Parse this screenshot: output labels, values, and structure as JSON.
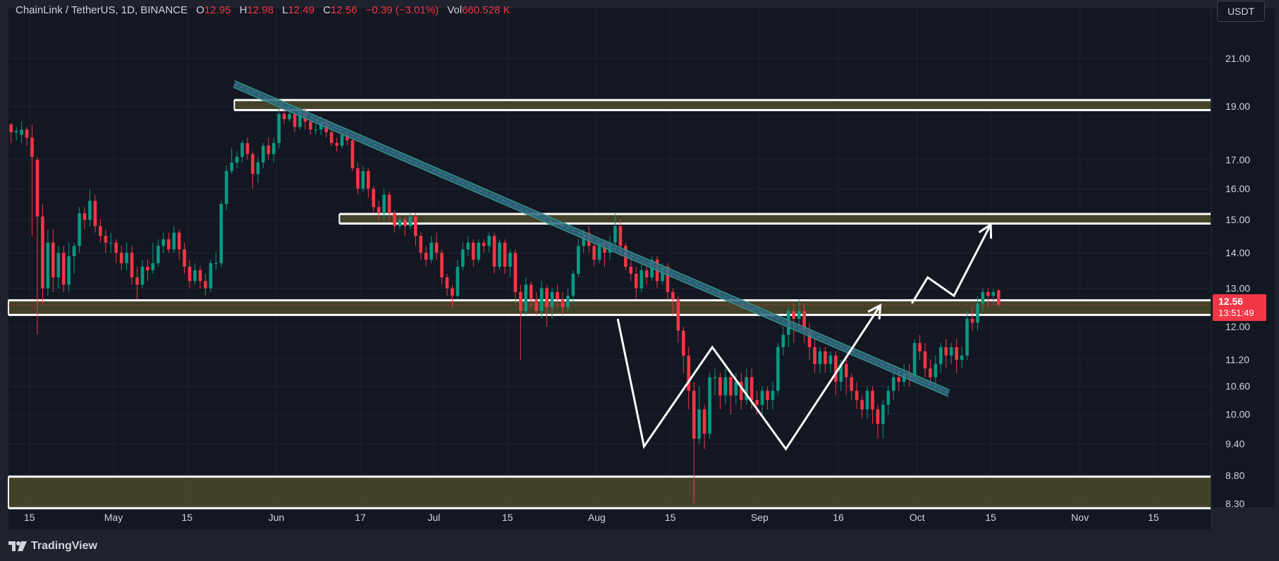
{
  "legend": {
    "symbol": "ChainLink / TetherUS, 1D, BINANCE",
    "open_k": "O",
    "open": "12.95",
    "high_k": "H",
    "high": "12.98",
    "low_k": "L",
    "low": "12.49",
    "close_k": "C",
    "close": "12.56",
    "change": "−0.39 (−3.01%)",
    "vol_k": "Vol",
    "vol": "660.528 K"
  },
  "currency": "USDT",
  "last_price": {
    "price": "12.56",
    "countdown": "13:51:49"
  },
  "branding": "TradingView",
  "colors": {
    "background": "#1e222d",
    "pane": "#131722",
    "up": "#089981",
    "down": "#f23645",
    "zone_fill": "#46452a",
    "zone_border": "#ffffff",
    "trendline": "#2a6e7a",
    "drawing": "#ffffff",
    "text": "#d1d4dc"
  },
  "chart_data": {
    "type": "candlestick",
    "y_scale": "log",
    "ylim": [
      8.22,
      23.3
    ],
    "price_ticks": [
      "21.00",
      "19.00",
      "17.00",
      "16.00",
      "15.00",
      "14.00",
      "13.00",
      "12.00",
      "11.20",
      "10.60",
      "10.00",
      "9.40",
      "8.80",
      "8.30"
    ],
    "x_range": [
      "2024-04-11",
      "2024-11-26"
    ],
    "x_ticks": [
      {
        "date": "2024-04-15",
        "label": "15"
      },
      {
        "date": "2024-05-01",
        "label": "May"
      },
      {
        "date": "2024-05-15",
        "label": "15"
      },
      {
        "date": "2024-06-01",
        "label": "Jun"
      },
      {
        "date": "2024-06-17",
        "label": "17"
      },
      {
        "date": "2024-07-01",
        "label": "Jul"
      },
      {
        "date": "2024-07-15",
        "label": "15"
      },
      {
        "date": "2024-08-01",
        "label": "Aug"
      },
      {
        "date": "2024-08-15",
        "label": "15"
      },
      {
        "date": "2024-09-01",
        "label": "Sep"
      },
      {
        "date": "2024-09-16",
        "label": "16"
      },
      {
        "date": "2024-10-01",
        "label": "Oct"
      },
      {
        "date": "2024-10-15",
        "label": "15"
      },
      {
        "date": "2024-11-01",
        "label": "Nov"
      },
      {
        "date": "2024-11-15",
        "label": "15"
      }
    ],
    "first_candle": "2024-04-11",
    "candles": [
      [
        18.3,
        18.0,
        18.35,
        17.6
      ],
      [
        18.0,
        18.05,
        18.2,
        17.7
      ],
      [
        17.9,
        18.1,
        18.4,
        17.6
      ],
      [
        18.1,
        17.8,
        18.2,
        17.5
      ],
      [
        17.8,
        17.1,
        18.3,
        14.5
      ],
      [
        17.0,
        15.1,
        17.1,
        11.8
      ],
      [
        15.1,
        13.0,
        15.5,
        12.6
      ],
      [
        13.0,
        14.3,
        14.7,
        12.8
      ],
      [
        14.3,
        13.3,
        14.7,
        12.9
      ],
      [
        13.3,
        14.0,
        14.2,
        13.0
      ],
      [
        14.0,
        13.1,
        14.2,
        12.9
      ],
      [
        13.1,
        13.9,
        14.3,
        12.9
      ],
      [
        13.9,
        14.2,
        14.3,
        13.4
      ],
      [
        14.2,
        15.2,
        15.4,
        14.0
      ],
      [
        15.2,
        15.0,
        15.4,
        14.7
      ],
      [
        15.0,
        15.6,
        16.0,
        14.8
      ],
      [
        15.6,
        14.8,
        15.8,
        14.6
      ],
      [
        14.8,
        14.5,
        15.0,
        14.3
      ],
      [
        14.5,
        14.3,
        14.7,
        14.0
      ],
      [
        14.3,
        14.3,
        14.6,
        14.0
      ],
      [
        14.3,
        14.0,
        14.4,
        13.7
      ],
      [
        14.0,
        13.7,
        14.2,
        13.5
      ],
      [
        13.7,
        14.0,
        14.3,
        13.5
      ],
      [
        14.0,
        13.3,
        14.2,
        13.1
      ],
      [
        13.3,
        13.1,
        13.6,
        12.7
      ],
      [
        13.1,
        13.6,
        13.8,
        13.0
      ],
      [
        13.6,
        13.5,
        13.8,
        13.2
      ],
      [
        13.5,
        13.7,
        14.3,
        13.4
      ],
      [
        13.7,
        14.2,
        14.4,
        13.6
      ],
      [
        14.2,
        14.4,
        14.6,
        14.0
      ],
      [
        14.4,
        14.1,
        14.6,
        14.0
      ],
      [
        14.1,
        14.6,
        14.8,
        14.0
      ],
      [
        14.6,
        14.1,
        14.7,
        13.8
      ],
      [
        14.1,
        13.6,
        14.3,
        13.4
      ],
      [
        13.6,
        13.2,
        13.8,
        13.0
      ],
      [
        13.2,
        13.5,
        13.7,
        13.1
      ],
      [
        13.5,
        13.2,
        13.6,
        13.0
      ],
      [
        13.2,
        13.0,
        13.4,
        12.8
      ],
      [
        13.0,
        13.7,
        13.8,
        12.9
      ],
      [
        13.7,
        13.7,
        14.0,
        13.5
      ],
      [
        13.7,
        15.5,
        15.6,
        13.6
      ],
      [
        15.5,
        16.6,
        16.8,
        15.3
      ],
      [
        16.6,
        16.9,
        17.4,
        16.5
      ],
      [
        16.9,
        17.1,
        17.3,
        16.7
      ],
      [
        17.1,
        17.6,
        17.7,
        16.9
      ],
      [
        17.6,
        17.2,
        17.8,
        17.0
      ],
      [
        17.2,
        16.5,
        17.3,
        16.0
      ],
      [
        16.5,
        16.9,
        17.1,
        16.2
      ],
      [
        16.9,
        17.5,
        17.6,
        16.7
      ],
      [
        17.5,
        17.2,
        17.8,
        17.0
      ],
      [
        17.2,
        17.6,
        17.8,
        16.9
      ],
      [
        17.6,
        18.7,
        18.9,
        17.4
      ],
      [
        18.7,
        18.5,
        19.0,
        18.3
      ],
      [
        18.5,
        18.7,
        19.0,
        18.4
      ],
      [
        18.7,
        18.2,
        18.9,
        18.0
      ],
      [
        18.2,
        18.8,
        19.0,
        18.1
      ],
      [
        18.8,
        18.4,
        18.9,
        18.1
      ],
      [
        18.4,
        18.1,
        18.6,
        17.9
      ],
      [
        18.1,
        18.1,
        18.3,
        17.9
      ],
      [
        18.1,
        18.4,
        18.6,
        17.9
      ],
      [
        18.4,
        18.0,
        18.5,
        17.8
      ],
      [
        18.0,
        17.6,
        18.1,
        17.5
      ],
      [
        17.6,
        17.5,
        17.8,
        17.3
      ],
      [
        17.5,
        17.9,
        18.0,
        17.4
      ],
      [
        17.9,
        17.7,
        18.0,
        17.5
      ],
      [
        17.7,
        16.7,
        17.8,
        16.6
      ],
      [
        16.7,
        16.0,
        16.9,
        15.8
      ],
      [
        16.0,
        16.6,
        16.8,
        15.9
      ],
      [
        16.6,
        16.0,
        16.7,
        15.7
      ],
      [
        16.0,
        15.4,
        16.1,
        15.2
      ],
      [
        15.4,
        15.2,
        15.6,
        15.0
      ],
      [
        15.2,
        15.8,
        16.0,
        15.0
      ],
      [
        15.8,
        15.2,
        15.9,
        14.9
      ],
      [
        15.2,
        14.8,
        15.3,
        14.6
      ],
      [
        14.8,
        15.0,
        15.1,
        14.7
      ],
      [
        15.0,
        14.8,
        15.1,
        14.5
      ],
      [
        14.8,
        15.1,
        15.2,
        14.7
      ],
      [
        15.1,
        14.5,
        15.2,
        14.2
      ],
      [
        14.5,
        14.0,
        14.6,
        13.8
      ],
      [
        14.0,
        13.8,
        14.2,
        13.6
      ],
      [
        13.8,
        14.3,
        14.5,
        13.7
      ],
      [
        14.3,
        14.0,
        14.6,
        13.8
      ],
      [
        14.0,
        13.3,
        14.1,
        13.1
      ],
      [
        13.3,
        13.0,
        13.4,
        12.8
      ],
      [
        13.0,
        12.8,
        13.1,
        12.5
      ],
      [
        12.8,
        13.6,
        13.8,
        12.7
      ],
      [
        13.6,
        14.1,
        14.3,
        13.5
      ],
      [
        14.1,
        14.3,
        14.5,
        13.9
      ],
      [
        14.3,
        13.8,
        14.4,
        13.6
      ],
      [
        13.8,
        14.3,
        14.4,
        13.7
      ],
      [
        14.3,
        14.2,
        14.4,
        14.0
      ],
      [
        14.2,
        14.5,
        14.6,
        14.0
      ],
      [
        14.5,
        13.6,
        14.6,
        13.4
      ],
      [
        13.6,
        14.3,
        14.4,
        13.5
      ],
      [
        14.3,
        13.6,
        14.4,
        13.4
      ],
      [
        13.6,
        14.0,
        14.1,
        13.3
      ],
      [
        14.0,
        12.9,
        14.1,
        12.6
      ],
      [
        12.9,
        12.4,
        13.1,
        11.2
      ],
      [
        12.4,
        13.1,
        13.3,
        12.3
      ],
      [
        13.1,
        12.7,
        13.2,
        12.5
      ],
      [
        12.7,
        12.4,
        12.9,
        12.3
      ],
      [
        12.4,
        13.0,
        13.2,
        12.2
      ],
      [
        13.0,
        12.5,
        13.1,
        12.0
      ],
      [
        12.5,
        12.9,
        13.0,
        12.2
      ],
      [
        12.9,
        12.7,
        13.1,
        12.5
      ],
      [
        12.7,
        12.5,
        12.9,
        12.3
      ],
      [
        12.5,
        12.8,
        13.0,
        12.4
      ],
      [
        12.8,
        13.4,
        13.5,
        12.6
      ],
      [
        13.4,
        14.2,
        14.4,
        13.3
      ],
      [
        14.2,
        14.6,
        14.7,
        14.0
      ],
      [
        14.6,
        14.2,
        14.8,
        14.0
      ],
      [
        14.2,
        13.8,
        14.3,
        13.6
      ],
      [
        13.8,
        14.3,
        14.4,
        13.7
      ],
      [
        14.3,
        14.0,
        14.4,
        13.6
      ],
      [
        14.0,
        14.3,
        14.5,
        13.8
      ],
      [
        14.3,
        14.8,
        15.2,
        14.2
      ],
      [
        14.8,
        14.2,
        15.0,
        13.9
      ],
      [
        14.2,
        13.6,
        14.3,
        13.5
      ],
      [
        13.6,
        13.4,
        14.0,
        13.2
      ],
      [
        13.4,
        13.0,
        13.6,
        12.7
      ],
      [
        13.0,
        13.5,
        13.7,
        12.9
      ],
      [
        13.5,
        13.3,
        13.6,
        13.1
      ],
      [
        13.3,
        13.8,
        13.9,
        13.2
      ],
      [
        13.8,
        13.2,
        13.9,
        13.0
      ],
      [
        13.2,
        13.6,
        13.7,
        13.1
      ],
      [
        13.6,
        12.9,
        13.7,
        12.7
      ],
      [
        12.9,
        12.7,
        13.0,
        12.3
      ],
      [
        12.7,
        11.9,
        12.8,
        11.6
      ],
      [
        11.9,
        11.3,
        12.0,
        10.9
      ],
      [
        11.3,
        10.5,
        11.5,
        10.1
      ],
      [
        10.5,
        9.5,
        10.7,
        8.3
      ],
      [
        9.5,
        10.1,
        10.6,
        9.4
      ],
      [
        10.1,
        9.6,
        10.2,
        9.3
      ],
      [
        9.6,
        10.8,
        10.9,
        9.5
      ],
      [
        10.8,
        10.8,
        11.0,
        10.4
      ],
      [
        10.8,
        10.4,
        10.9,
        10.1
      ],
      [
        10.4,
        10.8,
        11.0,
        10.2
      ],
      [
        10.8,
        10.4,
        10.9,
        10.0
      ],
      [
        10.4,
        10.7,
        10.9,
        10.2
      ],
      [
        10.7,
        10.3,
        10.9,
        10.1
      ],
      [
        10.3,
        10.8,
        11.0,
        10.2
      ],
      [
        10.8,
        10.3,
        11.0,
        10.1
      ],
      [
        10.3,
        10.2,
        10.5,
        10.0
      ],
      [
        10.2,
        10.5,
        10.6,
        10.0
      ],
      [
        10.5,
        10.3,
        10.6,
        10.1
      ],
      [
        10.3,
        10.5,
        10.7,
        10.1
      ],
      [
        10.5,
        11.5,
        11.6,
        10.4
      ],
      [
        11.5,
        11.8,
        12.0,
        11.3
      ],
      [
        11.8,
        12.4,
        12.5,
        11.5
      ],
      [
        12.4,
        12.2,
        12.6,
        11.6
      ],
      [
        12.2,
        12.4,
        12.7,
        11.9
      ],
      [
        12.4,
        11.9,
        12.6,
        11.6
      ],
      [
        11.9,
        11.5,
        12.1,
        11.2
      ],
      [
        11.5,
        11.1,
        11.7,
        10.9
      ],
      [
        11.1,
        11.4,
        11.5,
        10.9
      ],
      [
        11.4,
        11.1,
        11.5,
        10.9
      ],
      [
        11.1,
        11.3,
        11.4,
        10.9
      ],
      [
        11.3,
        10.7,
        11.4,
        10.4
      ],
      [
        10.7,
        11.1,
        11.2,
        10.5
      ],
      [
        11.1,
        10.8,
        11.2,
        10.4
      ],
      [
        10.8,
        10.5,
        10.9,
        10.3
      ],
      [
        10.5,
        10.3,
        10.7,
        10.1
      ],
      [
        10.3,
        10.1,
        10.4,
        9.9
      ],
      [
        10.1,
        10.5,
        10.6,
        9.9
      ],
      [
        10.5,
        10.1,
        10.6,
        9.8
      ],
      [
        10.1,
        9.8,
        10.2,
        9.5
      ],
      [
        9.8,
        10.2,
        10.3,
        9.5
      ],
      [
        10.2,
        10.5,
        10.6,
        10.0
      ],
      [
        10.5,
        10.8,
        10.9,
        10.3
      ],
      [
        10.8,
        10.7,
        11.0,
        10.5
      ],
      [
        10.7,
        10.9,
        11.1,
        10.6
      ],
      [
        10.9,
        10.8,
        11.1,
        10.6
      ],
      [
        10.8,
        11.6,
        11.7,
        10.7
      ],
      [
        11.6,
        11.4,
        11.8,
        11.2
      ],
      [
        11.4,
        11.0,
        11.6,
        10.8
      ],
      [
        11.0,
        10.8,
        11.2,
        10.6
      ],
      [
        10.8,
        11.1,
        11.3,
        10.5
      ],
      [
        11.1,
        11.5,
        11.6,
        10.9
      ],
      [
        11.5,
        11.3,
        11.7,
        11.0
      ],
      [
        11.3,
        11.5,
        11.6,
        11.1
      ],
      [
        11.5,
        11.2,
        11.7,
        10.9
      ],
      [
        11.2,
        11.3,
        11.5,
        11.0
      ],
      [
        11.3,
        12.2,
        12.4,
        11.2
      ],
      [
        12.2,
        12.1,
        12.5,
        11.9
      ],
      [
        12.1,
        12.6,
        12.8,
        11.9
      ],
      [
        12.6,
        12.9,
        13.0,
        12.4
      ],
      [
        12.9,
        12.8,
        13.0,
        12.5
      ],
      [
        12.8,
        12.9,
        13.0,
        12.6
      ],
      [
        12.95,
        12.56,
        12.98,
        12.49
      ]
    ],
    "zones": [
      {
        "top": 19.25,
        "bottom": 18.85,
        "from": "2024-05-24",
        "to": "2024-11-26"
      },
      {
        "top": 15.18,
        "bottom": 14.88,
        "from": "2024-06-13",
        "to": "2024-11-26"
      },
      {
        "top": 12.68,
        "bottom": 12.3,
        "from": "2024-04-11",
        "to": "2024-11-26"
      },
      {
        "top": 8.78,
        "bottom": 8.22,
        "from": "2024-04-11",
        "to": "2024-11-26"
      }
    ],
    "trendline": {
      "from": [
        "2024-05-24",
        19.9
      ],
      "to": [
        "2024-10-07",
        10.45
      ]
    },
    "pattern_path": [
      [
        "2024-08-05",
        12.2
      ],
      [
        "2024-08-10",
        9.35
      ],
      [
        "2024-08-23",
        11.5
      ],
      [
        "2024-09-06",
        9.3
      ],
      [
        "2024-09-24",
        12.55
      ]
    ],
    "projection_path": [
      [
        "2024-09-30",
        12.6
      ],
      [
        "2024-10-03",
        13.3
      ],
      [
        "2024-10-08",
        12.8
      ],
      [
        "2024-10-15",
        14.85
      ]
    ]
  }
}
